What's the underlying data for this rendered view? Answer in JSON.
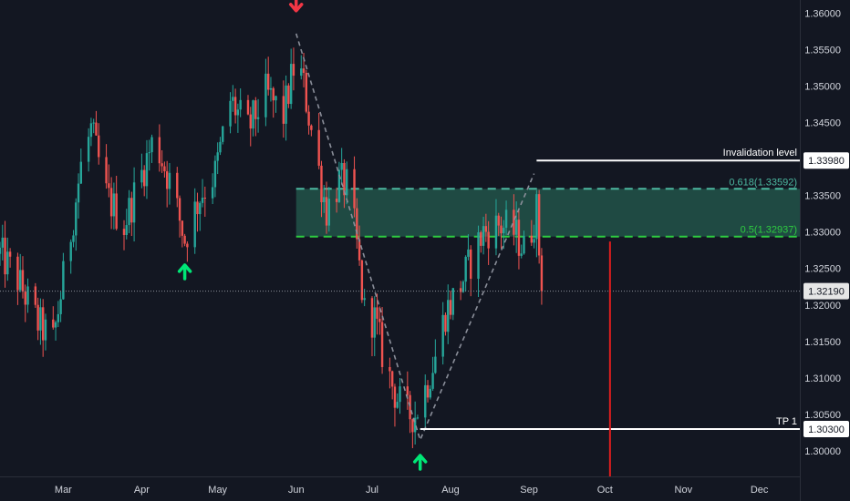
{
  "chart_data": {
    "type": "candlestick",
    "price_axis": {
      "ticks": [
        "1.36000",
        "1.35500",
        "1.35000",
        "1.34500",
        "1.33500",
        "1.33000",
        "1.32500",
        "1.32000",
        "1.31500",
        "1.31000",
        "1.30500",
        "1.30000"
      ],
      "tick_values": [
        1.36,
        1.355,
        1.35,
        1.345,
        1.335,
        1.33,
        1.325,
        1.32,
        1.315,
        1.31,
        1.305,
        1.3
      ],
      "range": [
        1.2965,
        1.3618
      ]
    },
    "time_axis": {
      "labels": [
        "Mar",
        "Apr",
        "May",
        "Jun",
        "Jul",
        "Aug",
        "Sep",
        "Oct",
        "Nov",
        "Dec"
      ],
      "dates": [
        "2024-03-01",
        "2024-04-01",
        "2024-05-01",
        "2024-06-01",
        "2024-07-01",
        "2024-08-01",
        "2024-09-01",
        "2024-10-01",
        "2024-11-01",
        "2024-12-01"
      ],
      "range": [
        "2024-02-05",
        "2024-12-17"
      ]
    },
    "path": [
      [
        "2024-02-05",
        1.327
      ],
      [
        "2024-02-12",
        1.3235
      ],
      [
        "2024-02-20",
        1.3175
      ],
      [
        "2024-02-26",
        1.315
      ],
      [
        "2024-03-04",
        1.33
      ],
      [
        "2024-03-08",
        1.339
      ],
      [
        "2024-03-12",
        1.344
      ],
      [
        "2024-03-18",
        1.335
      ],
      [
        "2024-03-25",
        1.331
      ],
      [
        "2024-04-01",
        1.338
      ],
      [
        "2024-04-06",
        1.343
      ],
      [
        "2024-04-12",
        1.337
      ],
      [
        "2024-04-18",
        1.329
      ],
      [
        "2024-04-24",
        1.335
      ],
      [
        "2024-04-30",
        1.338
      ],
      [
        "2024-05-06",
        1.348
      ],
      [
        "2024-05-13",
        1.344
      ],
      [
        "2024-05-20",
        1.349
      ],
      [
        "2024-05-27",
        1.346
      ],
      [
        "2024-06-01",
        1.354
      ],
      [
        "2024-06-04",
        1.35
      ],
      [
        "2024-06-08",
        1.342
      ],
      [
        "2024-06-13",
        1.333
      ],
      [
        "2024-06-18",
        1.337
      ],
      [
        "2024-06-22",
        1.336
      ],
      [
        "2024-06-25",
        1.328
      ],
      [
        "2024-06-28",
        1.319
      ],
      [
        "2024-07-02",
        1.318
      ],
      [
        "2024-07-06",
        1.312
      ],
      [
        "2024-07-10",
        1.308
      ],
      [
        "2024-07-14",
        1.305
      ],
      [
        "2024-07-18",
        1.305
      ],
      [
        "2024-07-22",
        1.3085
      ],
      [
        "2024-07-26",
        1.313
      ],
      [
        "2024-07-30",
        1.319
      ],
      [
        "2024-08-04",
        1.322
      ],
      [
        "2024-08-09",
        1.326
      ],
      [
        "2024-08-14",
        1.33
      ],
      [
        "2024-08-20",
        1.331
      ],
      [
        "2024-08-26",
        1.33
      ],
      [
        "2024-08-31",
        1.327
      ],
      [
        "2024-09-02",
        1.3305
      ],
      [
        "2024-09-04",
        1.333
      ],
      [
        "2024-09-06",
        1.3219
      ]
    ],
    "swing_line": [
      [
        "2024-06-01",
        1.3572
      ],
      [
        "2024-07-20",
        1.3015
      ],
      [
        "2024-09-03",
        1.338
      ]
    ],
    "fib_zone": {
      "start": "2024-06-01",
      "upper": 1.33592,
      "lower": 1.32937,
      "upper_label": "0.618(1.33592)",
      "lower_label": "0.5(1.32937)"
    },
    "annotations": {
      "invalidation": {
        "label": "Invalidation level",
        "price": 1.3398,
        "badge": "1.33980",
        "start": "2024-09-04"
      },
      "current": {
        "price": 1.3219,
        "badge": "1.32190"
      },
      "tp": {
        "label": "TP 1",
        "price": 1.303,
        "badge": "1.30300",
        "start": "2024-07-20"
      },
      "red_line": {
        "date": "2024-10-03",
        "price": 1.3287
      }
    },
    "arrows": [
      {
        "dir": "down",
        "date": "2024-06-01",
        "price": 1.3612,
        "color": "#f23645"
      },
      {
        "dir": "up",
        "date": "2024-04-18",
        "price": 1.3246,
        "color": "#00e676"
      },
      {
        "dir": "up",
        "date": "2024-07-20",
        "price": 1.2985,
        "color": "#00e676"
      }
    ],
    "colors": {
      "background": "#131722",
      "bull": "#26a69a",
      "bear": "#ef5350",
      "zone_fill": "#1f4a43",
      "fib_upper": "#4cb8a0",
      "fib_lower": "#2ecc40",
      "invalidation": "#ffffff",
      "red_line": "#e01e1e",
      "swing": "#8a8e99",
      "axis_text": "#d1d4dc",
      "dotted": "#8a8e99"
    }
  }
}
